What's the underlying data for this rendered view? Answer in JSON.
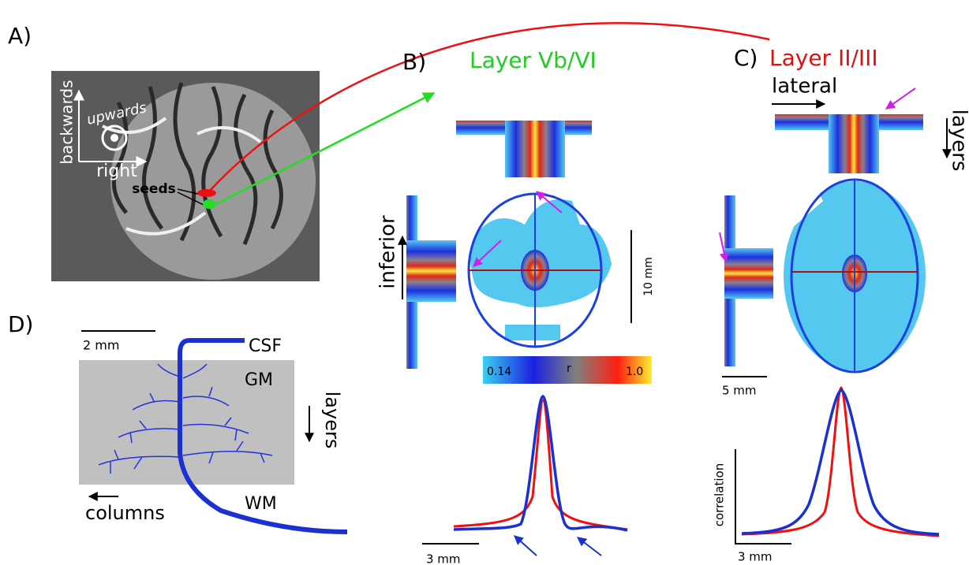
{
  "panel_a": {
    "label": "A)",
    "backwards": "backwards",
    "upwards": "upwards",
    "right": "right",
    "seeds": "seeds"
  },
  "panel_b": {
    "label": "B)",
    "title": "Layer Vb/VI",
    "inferior": "inferior",
    "scale_vertical": "10 mm",
    "colorbar_min": "0.14",
    "colorbar_symbol": "r",
    "colorbar_max": "1.0",
    "scale_profile": "3 mm"
  },
  "panel_c": {
    "label": "C)",
    "title": "Layer II/III",
    "lateral": "lateral",
    "layers": "layers",
    "scale_map": "5 mm",
    "y_axis": "correlation",
    "scale_profile": "3 mm"
  },
  "panel_d": {
    "label": "D)",
    "scale": "2 mm",
    "csf": "CSF",
    "gm": "GM",
    "layers": "layers",
    "columns": "columns",
    "wm": "WM"
  }
}
